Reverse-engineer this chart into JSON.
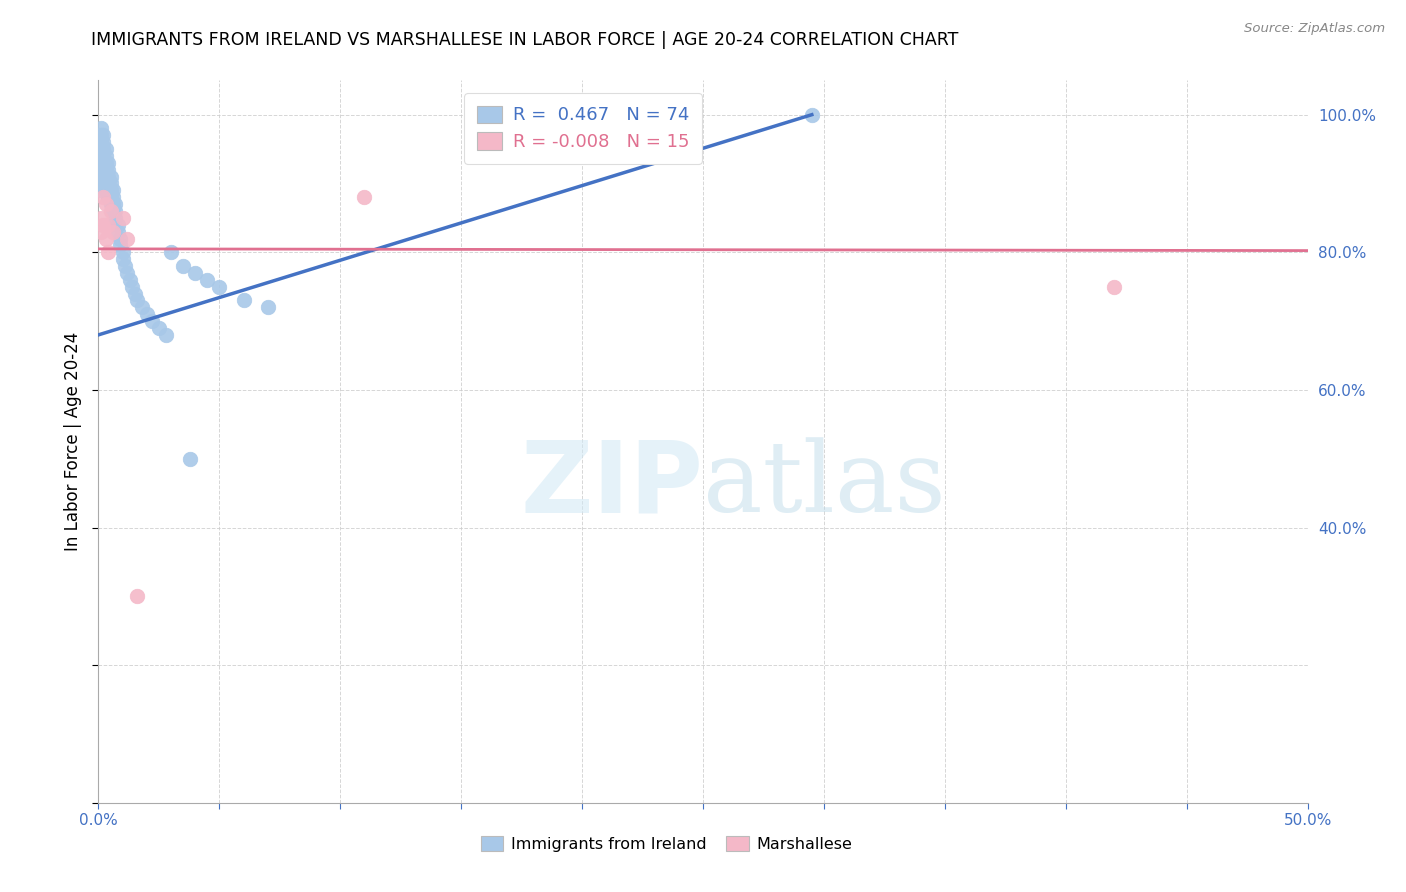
{
  "title": "IMMIGRANTS FROM IRELAND VS MARSHALLESE IN LABOR FORCE | AGE 20-24 CORRELATION CHART",
  "source": "Source: ZipAtlas.com",
  "ylabel": "In Labor Force | Age 20-24",
  "x_min": 0.0,
  "x_max": 0.5,
  "y_min": 0.0,
  "y_max": 1.05,
  "ireland_R": 0.467,
  "ireland_N": 74,
  "marshallese_R": -0.008,
  "marshallese_N": 15,
  "ireland_color": "#a8c8e8",
  "ireland_line_color": "#4472c4",
  "marshallese_color": "#f4b8c8",
  "marshallese_line_color": "#e07090",
  "watermark_color": "#d0e8f5",
  "ireland_x": [
    0.0,
    0.0,
    0.0,
    0.0,
    0.0,
    0.001,
    0.001,
    0.001,
    0.001,
    0.001,
    0.001,
    0.001,
    0.001,
    0.001,
    0.001,
    0.002,
    0.002,
    0.002,
    0.002,
    0.002,
    0.002,
    0.002,
    0.002,
    0.003,
    0.003,
    0.003,
    0.003,
    0.003,
    0.003,
    0.003,
    0.004,
    0.004,
    0.004,
    0.004,
    0.004,
    0.004,
    0.005,
    0.005,
    0.005,
    0.005,
    0.005,
    0.006,
    0.006,
    0.006,
    0.006,
    0.007,
    0.007,
    0.007,
    0.008,
    0.008,
    0.009,
    0.009,
    0.01,
    0.01,
    0.011,
    0.012,
    0.013,
    0.014,
    0.015,
    0.016,
    0.018,
    0.02,
    0.022,
    0.025,
    0.028,
    0.03,
    0.035,
    0.04,
    0.045,
    0.05,
    0.06,
    0.07,
    0.038,
    0.295
  ],
  "ireland_y": [
    0.97,
    0.96,
    0.95,
    0.94,
    0.93,
    0.98,
    0.97,
    0.96,
    0.95,
    0.94,
    0.93,
    0.92,
    0.91,
    0.9,
    0.89,
    0.97,
    0.96,
    0.95,
    0.94,
    0.93,
    0.92,
    0.91,
    0.9,
    0.95,
    0.94,
    0.93,
    0.92,
    0.91,
    0.9,
    0.89,
    0.93,
    0.92,
    0.91,
    0.9,
    0.89,
    0.88,
    0.91,
    0.9,
    0.89,
    0.88,
    0.87,
    0.89,
    0.88,
    0.87,
    0.86,
    0.87,
    0.86,
    0.85,
    0.84,
    0.83,
    0.82,
    0.81,
    0.8,
    0.79,
    0.78,
    0.77,
    0.76,
    0.75,
    0.74,
    0.73,
    0.72,
    0.71,
    0.7,
    0.69,
    0.68,
    0.8,
    0.78,
    0.77,
    0.76,
    0.75,
    0.73,
    0.72,
    0.5,
    1.0
  ],
  "marshallese_x": [
    0.001,
    0.001,
    0.002,
    0.002,
    0.003,
    0.003,
    0.004,
    0.004,
    0.005,
    0.006,
    0.01,
    0.012,
    0.016,
    0.11,
    0.42
  ],
  "marshallese_y": [
    0.85,
    0.83,
    0.88,
    0.84,
    0.87,
    0.82,
    0.84,
    0.8,
    0.86,
    0.83,
    0.85,
    0.82,
    0.3,
    0.88,
    0.75
  ],
  "ireland_line_x0": 0.0,
  "ireland_line_y0": 0.68,
  "ireland_line_x1": 0.295,
  "ireland_line_y1": 1.0,
  "marsh_line_y": 0.805
}
